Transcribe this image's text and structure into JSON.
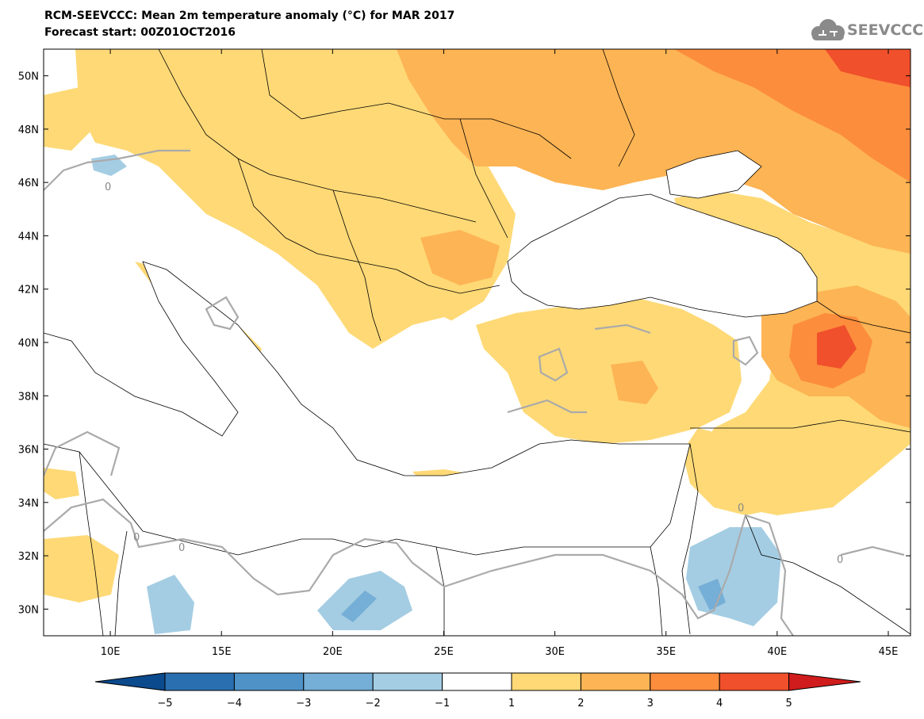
{
  "title_line1": "RCM-SEEVCCC: Mean 2m temperature anomaly (°C) for MAR 2017",
  "title_line2": "Forecast start: 00Z01OCT2016",
  "logo_text": "SEEVCCC",
  "map": {
    "lon_range": [
      7,
      46
    ],
    "lat_range": [
      29,
      51
    ],
    "lon_ticks": [
      "10E",
      "15E",
      "20E",
      "25E",
      "30E",
      "35E",
      "40E",
      "45E"
    ],
    "lat_ticks": [
      "50N",
      "48N",
      "46N",
      "44N",
      "42N",
      "40N",
      "38N",
      "36N",
      "34N",
      "32N",
      "30N"
    ],
    "contour_label": "0"
  },
  "colorbar": {
    "labels": [
      "-5",
      "-4",
      "-3",
      "-2",
      "-1",
      "1",
      "2",
      "3",
      "4",
      "5"
    ],
    "colors": [
      "#0b4a8c",
      "#2a6fb0",
      "#4e92c8",
      "#75aed6",
      "#a4cde3",
      "#ffffff",
      "#fed976",
      "#fdb454",
      "#fc8d3c",
      "#f0502b",
      "#d01c1c"
    ]
  }
}
